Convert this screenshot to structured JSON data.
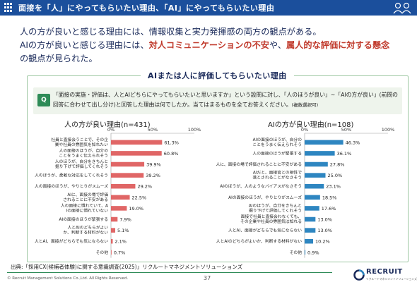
{
  "header": {
    "title": "面接を「人」にやってもらいたい理由、「AI」にやってもらいたい理由"
  },
  "intro": {
    "line1": "人の方が良いと感じる理由には、情報収集と実力発揮感の両方の観点がある。",
    "line2_pre": "AIの方が良いと感じる理由には、",
    "line2_hl1": "対人コミュニケーションの不安",
    "line2_mid": "や、",
    "line2_hl2": "属人的な評価に対する懸念",
    "line3": "の観点が見られた。"
  },
  "panel": {
    "title": "AIまたは人に評価してもらいたい理由",
    "q_badge": "Q",
    "question": "「面接の実施・評価は、人とAIどちらにやってもらいたいと思いますか」という設問に対し、「人のほうが良い」~「AIの方が良い」(前問の回答に合わせて出し分け)と回答した理由は何でしたか。当てはまるものを全てお答えください。",
    "question_note": "(複数選択可)"
  },
  "colors": {
    "header_bg": "#1b4f9c",
    "human_bar": "#e06666",
    "ai_bar": "#2e86c1",
    "accent_red": "#c0392b",
    "panel_border": "#9ec8a3"
  },
  "chart_data": [
    {
      "type": "bar",
      "orientation": "horizontal",
      "title": "人の方が良い理由(n=431)",
      "axis_ticks": [
        "0%",
        "50%",
        "100%"
      ],
      "xlim": [
        0,
        100
      ],
      "color": "#e06666",
      "categories": [
        "社員と直接会うことで、その企業や社員の雰囲気を知れたい",
        "人の面接のほうが、自分のことをうまく伝えられそう",
        "人のほうが、自分をきちんと掘り下げて評価してくれそう",
        "人のほうが、柔軟な対応をしてくれそう",
        "人の面接のほうが、やりとりがスムーズ",
        "AIに、面接の場で評価されることに不安がある",
        "人の面接に慣れていて、AIの面接に慣れていない",
        "AIの面接のほうが緊張する",
        "人とAIのどちらがよいか、判断する材料がない",
        "人とAI、面接がどちらでも気にならない",
        "その他"
      ],
      "values": [
        61.3,
        60.8,
        39.9,
        39.2,
        29.2,
        22.5,
        19.0,
        7.9,
        5.1,
        2.1,
        0.7
      ],
      "labels": [
        "61.3%",
        "60.8%",
        "39.9%",
        "39.2%",
        "29.2%",
        "22.5%",
        "19.0%",
        "7.9%",
        "5.1%",
        "2.1%",
        "0.7%"
      ]
    },
    {
      "type": "bar",
      "orientation": "horizontal",
      "title": "AIの方が良い理由(n=108)",
      "axis_ticks": [
        "0%",
        "50%",
        "100%"
      ],
      "xlim": [
        0,
        100
      ],
      "color": "#2e86c1",
      "categories": [
        "AIの面接のほうが、自分のことをうまく伝えられそう",
        "人の面接のほうが緊張する",
        "人に、面接の場で評価されることに不安がある",
        "AIだと、面接官との相性で落とされることがなさそう",
        "AIのほうが、人のようなバイアスがなさそう",
        "AIの面接のほうが、やりとりがスムーズ",
        "AIのほうが、自分をきちんと掘り下げて評価してくれそう",
        "面接で社員と直接会わなくても、その企業や社員の雰囲気は知れる",
        "人とAI、面接がどちらでも気にならない",
        "人とAIのどちらがよいか、判断する材料がない",
        "その他"
      ],
      "values": [
        46.3,
        36.1,
        27.8,
        25.0,
        23.1,
        18.5,
        17.6,
        13.0,
        13.0,
        10.2,
        0.9
      ],
      "labels": [
        "46.3%",
        "36.1%",
        "27.8%",
        "25.0%",
        "23.1%",
        "18.5%",
        "17.6%",
        "13.0%",
        "13.0%",
        "10.2%",
        "0.9%"
      ]
    }
  ],
  "footer": {
    "source": "出典:「採用CX(候補者体験)に関する意識調査(2025)」リクルートマネジメントソリューションズ",
    "copyright": "© Recruit Management Solutions Co.,Ltd. All Rights Reserved.",
    "page": "37",
    "logo": "RECRUIT",
    "logo_sub": "リクルートマネジメントソリューションズ"
  }
}
